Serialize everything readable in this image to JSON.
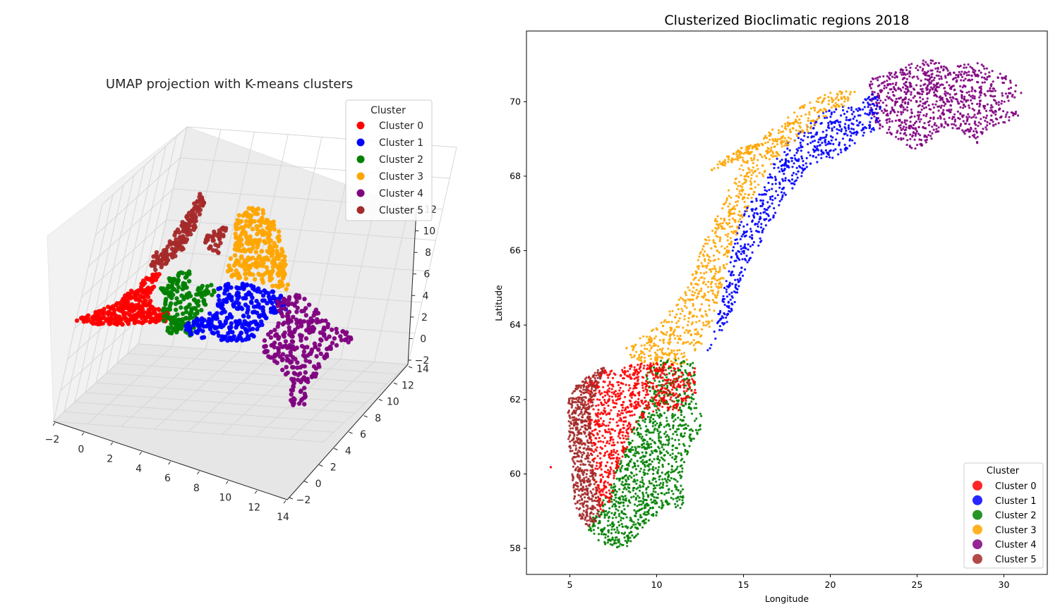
{
  "colors": {
    "Cluster 0": "#ff0000",
    "Cluster 1": "#0000ff",
    "Cluster 2": "#008000",
    "Cluster 3": "#ffa500",
    "Cluster 4": "#800080",
    "Cluster 5": "#a52a2a"
  },
  "chart_data": [
    {
      "type": "scatter",
      "projection": "3d",
      "title": "UMAP projection with K-means clusters",
      "legend_title": "Cluster",
      "legend_position": "upper-right",
      "grid": true,
      "series": [
        {
          "name": "Cluster 0"
        },
        {
          "name": "Cluster 1"
        },
        {
          "name": "Cluster 2"
        },
        {
          "name": "Cluster 3"
        },
        {
          "name": "Cluster 4"
        },
        {
          "name": "Cluster 5"
        }
      ],
      "x_ticks": [
        "−2",
        "0",
        "2",
        "4",
        "6",
        "8",
        "10",
        "12",
        "14"
      ],
      "y_ticks": [
        "−2",
        "0",
        "2",
        "4",
        "6",
        "8",
        "10",
        "12",
        "14"
      ],
      "z_ticks": [
        "−2",
        "0",
        "2",
        "4",
        "6",
        "8",
        "10",
        "12"
      ],
      "xlim": [
        -2,
        14
      ],
      "ylim": [
        -2,
        14
      ],
      "zlim": [
        -2,
        12
      ]
    },
    {
      "type": "scatter",
      "title": "Clusterized Bioclimatic regions 2018",
      "xlabel": "Longitude",
      "ylabel": "Latitude",
      "legend_title": "Cluster",
      "legend_position": "lower-right",
      "xlim": [
        2.5,
        32.5
      ],
      "ylim": [
        57.3,
        71.9
      ],
      "x_ticks": [
        "5",
        "10",
        "15",
        "20",
        "25",
        "30"
      ],
      "y_ticks": [
        "58",
        "60",
        "62",
        "64",
        "66",
        "68",
        "70"
      ],
      "series": [
        {
          "name": "Cluster 0"
        },
        {
          "name": "Cluster 1"
        },
        {
          "name": "Cluster 2"
        },
        {
          "name": "Cluster 3"
        },
        {
          "name": "Cluster 4"
        },
        {
          "name": "Cluster 5"
        }
      ]
    }
  ]
}
